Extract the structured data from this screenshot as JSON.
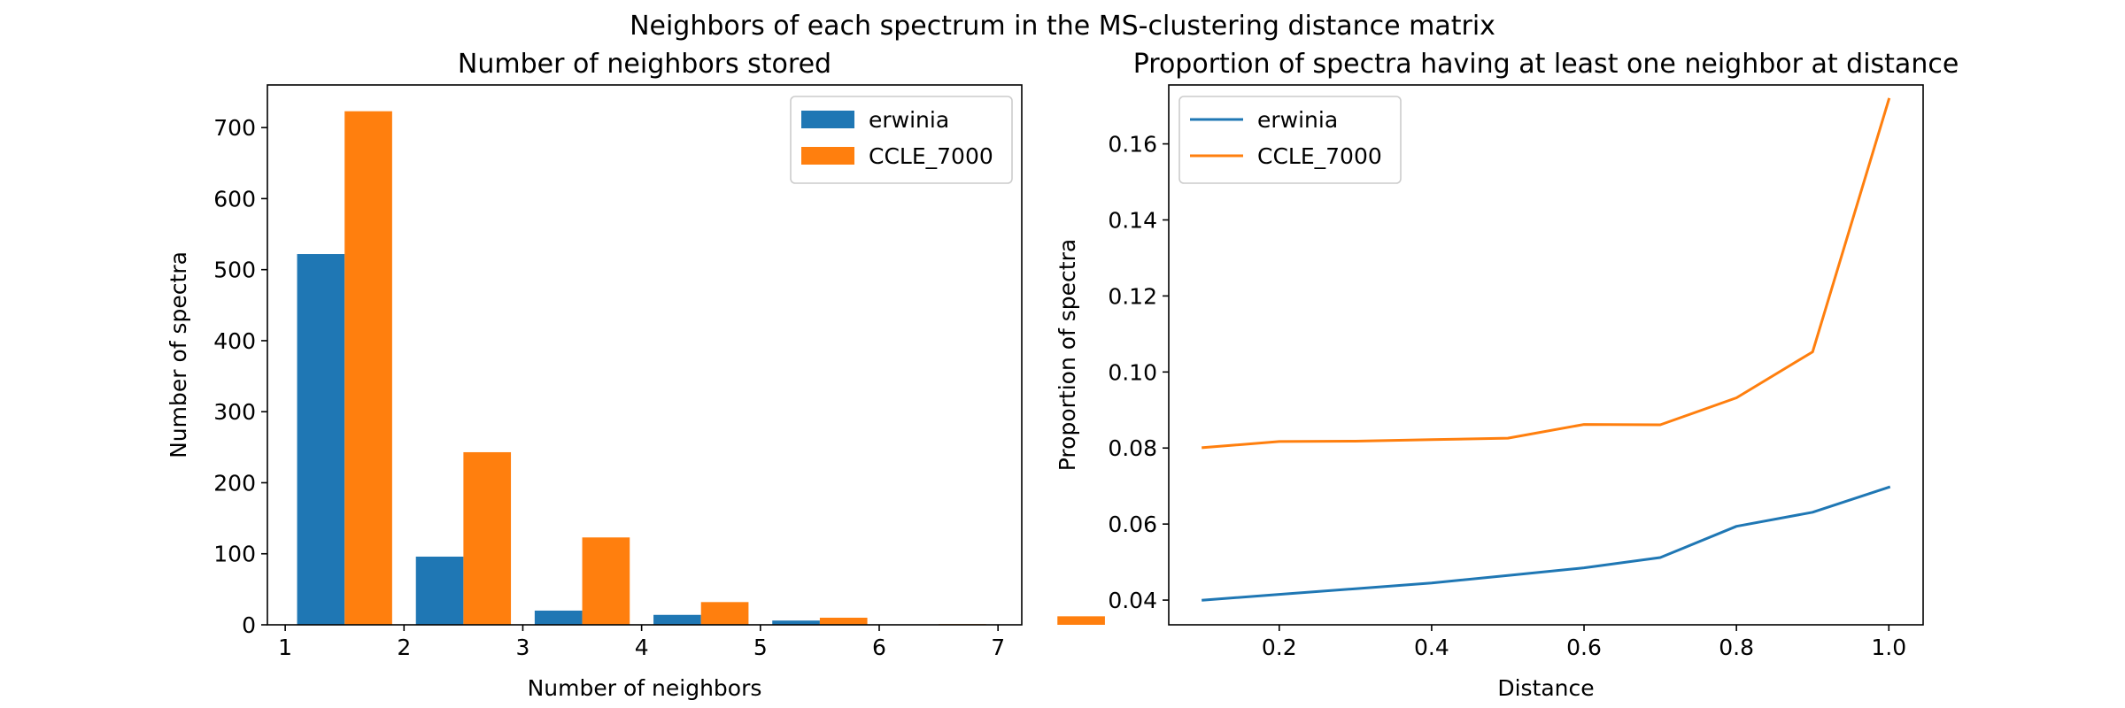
{
  "suptitle": "Neighbors of each spectrum in the MS-clustering distance matrix",
  "colors": {
    "series1": "#1f77b4",
    "series2": "#ff7f0e"
  },
  "chart_data": [
    {
      "type": "bar",
      "title": "Number of neighbors stored",
      "xlabel": "Number of neighbors",
      "ylabel": "Number of spectra",
      "xlim": [
        0.85,
        7.2
      ],
      "ylim": [
        0,
        760
      ],
      "xticks": [
        1,
        2,
        3,
        4,
        5,
        6,
        7
      ],
      "yticks": [
        0,
        100,
        200,
        300,
        400,
        500,
        600,
        700
      ],
      "categories": [
        1,
        2,
        3,
        4,
        5,
        6,
        7
      ],
      "bar_width": 0.4,
      "legend": "top-right",
      "series": [
        {
          "name": "erwinia",
          "values": [
            522,
            96,
            20,
            14,
            6,
            0,
            0
          ]
        },
        {
          "name": "CCLE_7000",
          "values": [
            723,
            243,
            123,
            32,
            10,
            1,
            12
          ]
        }
      ]
    },
    {
      "type": "line",
      "title": "Proportion of spectra having at least one neighbor at distance",
      "xlabel": "Distance",
      "ylabel": "Proportion of spectra",
      "xlim": [
        0.055,
        1.045
      ],
      "ylim": [
        0.0335,
        0.1755
      ],
      "xticks": [
        0.2,
        0.4,
        0.6,
        0.8,
        1.0
      ],
      "yticks": [
        0.04,
        0.06,
        0.08,
        0.1,
        0.12,
        0.14,
        0.16
      ],
      "legend": "top-left",
      "x": [
        0.1,
        0.2,
        0.3,
        0.4,
        0.5,
        0.6,
        0.7,
        0.8,
        0.9,
        1.0
      ],
      "series": [
        {
          "name": "erwinia",
          "values": [
            0.04,
            0.0415,
            0.043,
            0.0445,
            0.0465,
            0.0485,
            0.0512,
            0.0594,
            0.0631,
            0.0697
          ]
        },
        {
          "name": "CCLE_7000",
          "values": [
            0.0801,
            0.0817,
            0.0818,
            0.0822,
            0.0826,
            0.0862,
            0.0861,
            0.0932,
            0.1053,
            0.1717
          ]
        }
      ]
    }
  ]
}
